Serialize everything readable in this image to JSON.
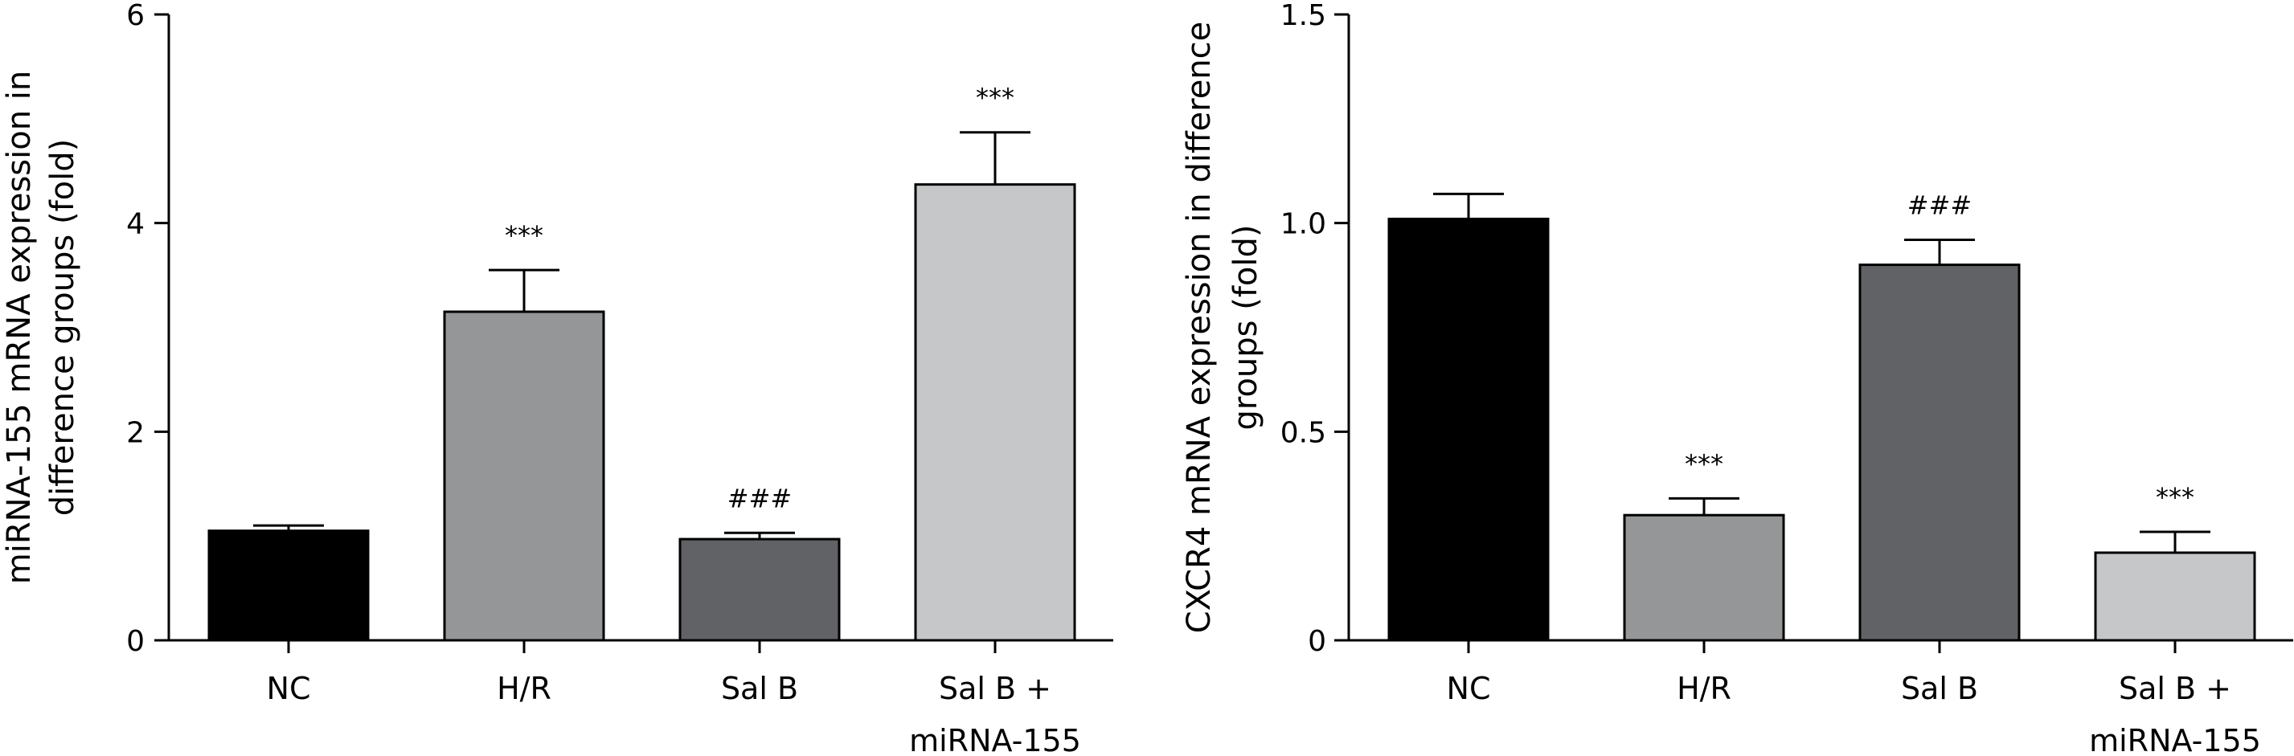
{
  "chart_data": [
    {
      "type": "bar",
      "categories": [
        "NC",
        "H/R",
        "Sal B",
        "Sal B + miRNA-155"
      ],
      "category_lines": [
        [
          "NC"
        ],
        [
          "H/R"
        ],
        [
          "Sal B"
        ],
        [
          "Sal B +",
          "miRNA-155"
        ]
      ],
      "values": [
        1.05,
        3.15,
        0.97,
        4.37
      ],
      "errors": [
        0.05,
        0.4,
        0.06,
        0.5
      ],
      "annotations": [
        "",
        "***",
        "###",
        "***"
      ],
      "colors": [
        "#000000",
        "#959697",
        "#616265",
        "#c6c7c9"
      ],
      "ylabel_lines": [
        "miRNA-155 mRNA expression in",
        "difference groups (fold)"
      ],
      "ylim": [
        0,
        6
      ],
      "yticks": [
        0,
        2,
        4,
        6
      ],
      "ytick_labels": [
        "0",
        "2",
        "4",
        "6"
      ]
    },
    {
      "type": "bar",
      "categories": [
        "NC",
        "H/R",
        "Sal B",
        "Sal B + miRNA-155"
      ],
      "category_lines": [
        [
          "NC"
        ],
        [
          "H/R"
        ],
        [
          "Sal B"
        ],
        [
          "Sal B +",
          "miRNA-155"
        ]
      ],
      "values": [
        1.01,
        0.3,
        0.9,
        0.21
      ],
      "errors": [
        0.06,
        0.04,
        0.06,
        0.05
      ],
      "annotations": [
        "",
        "***",
        "###",
        "***"
      ],
      "colors": [
        "#000000",
        "#959697",
        "#616265",
        "#c6c7c9"
      ],
      "ylabel_lines": [
        "CXCR4 mRNA expression in difference",
        "groups (fold)"
      ],
      "ylim": [
        0,
        1.5
      ],
      "yticks": [
        0,
        0.5,
        1.0,
        1.5
      ],
      "ytick_labels": [
        "0",
        "0.5",
        "1.0",
        "1.5"
      ]
    }
  ]
}
